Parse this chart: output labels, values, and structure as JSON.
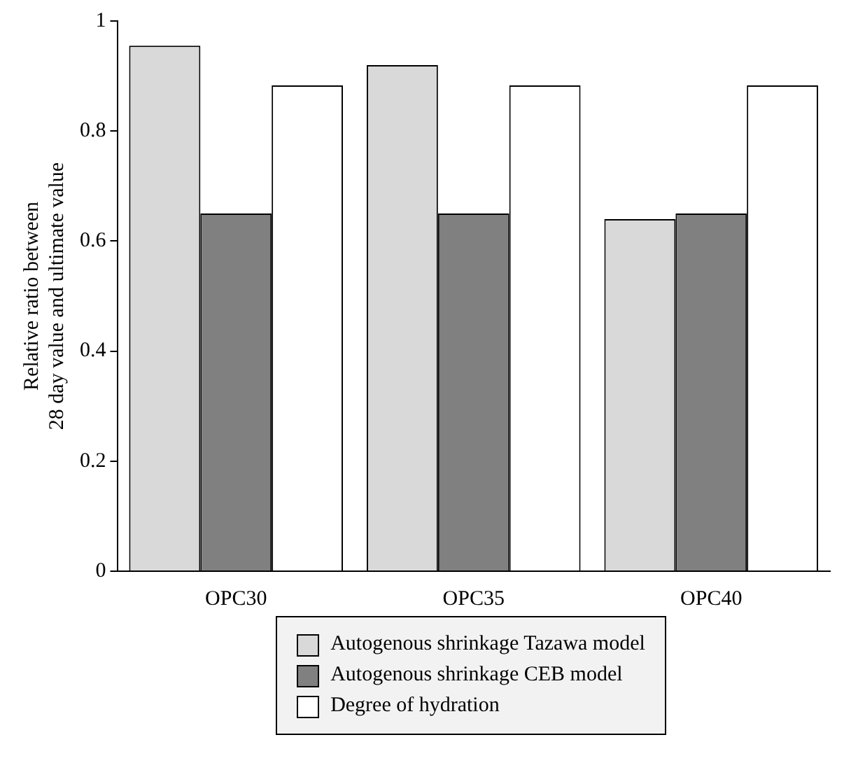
{
  "chart_data": {
    "type": "bar",
    "ylabel": "Relative ratio between\n28 day value and ultimate value",
    "categories": [
      "OPC30",
      "OPC35",
      "OPC40"
    ],
    "series": [
      {
        "name": "Autogenous shrinkage Tazawa model",
        "color": "#d9d9d9",
        "values": [
          0.955,
          0.92,
          0.64
        ]
      },
      {
        "name": "Autogenous shrinkage CEB model",
        "color": "#808080",
        "values": [
          0.65,
          0.65,
          0.65
        ]
      },
      {
        "name": "Degree of hydration",
        "color": "#ffffff",
        "values": [
          0.883,
          0.883,
          0.883
        ]
      }
    ],
    "ylim": [
      0,
      1
    ],
    "yticks": [
      0,
      0.2,
      0.4,
      0.6,
      0.8,
      1
    ],
    "legend": "bottom"
  }
}
